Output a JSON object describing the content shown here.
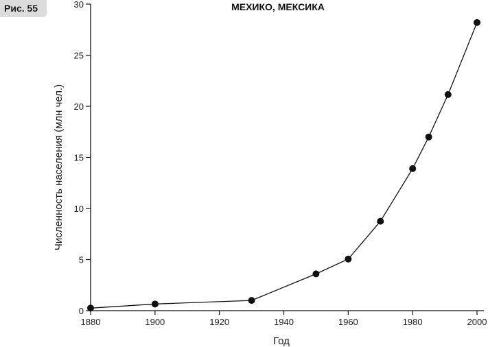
{
  "figure_label": "Рис. 55",
  "colors": {
    "line": "#111111",
    "marker": "#111111",
    "badge_bg": "#dcdcdc"
  },
  "chart_data": {
    "type": "line",
    "title": "МЕХИКО, МЕКСИКА",
    "xlabel": "Год",
    "ylabel": "Численность населения (млн чел.)",
    "xlim": [
      1880,
      2002
    ],
    "ylim": [
      0,
      30
    ],
    "xticks": [
      1880,
      1900,
      1920,
      1940,
      1960,
      1980,
      2000
    ],
    "yticks": [
      0,
      5,
      10,
      15,
      20,
      25,
      30
    ],
    "grid": false,
    "series": [
      {
        "x": [
          1880,
          1900,
          1930,
          1950,
          1960,
          1970,
          1980,
          1985,
          1991,
          2000
        ],
        "y": [
          0.25,
          0.65,
          1.0,
          3.6,
          5.05,
          8.75,
          13.9,
          17.0,
          21.15,
          28.2
        ]
      }
    ]
  }
}
